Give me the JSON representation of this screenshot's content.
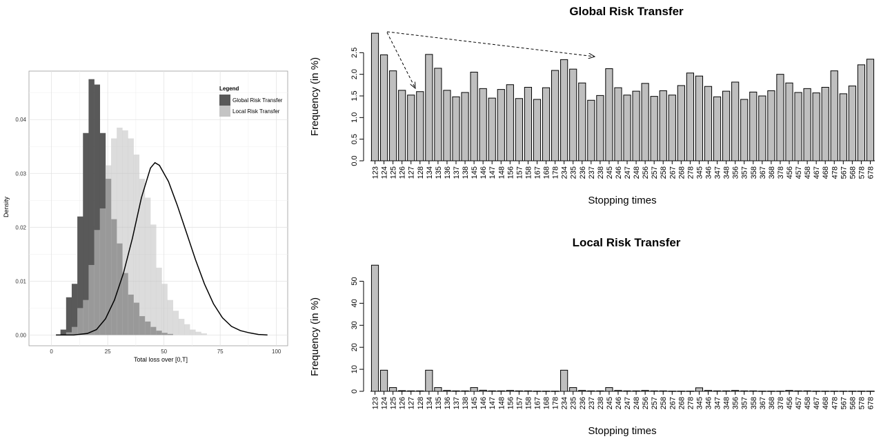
{
  "chart_data": [
    {
      "type": "area",
      "title": "",
      "xlabel": "Total loss over [0,T]",
      "ylabel": "Density",
      "xlim": [
        -10,
        105
      ],
      "ylim": [
        -0.002,
        0.049
      ],
      "x_ticks": [
        "0",
        "25",
        "50",
        "75",
        "100"
      ],
      "y_ticks": [
        "0.00",
        "0.01",
        "0.02",
        "0.03",
        "0.04"
      ],
      "grid": true,
      "legend_title": "Legend",
      "legend_position": "top-right",
      "bin_width": 2.5,
      "series": [
        {
          "name": "Global Risk Transfer",
          "color": "#595959",
          "bin_start": 4,
          "values": [
            0.001,
            0.007,
            0.0095,
            0.022,
            0.0375,
            0.0475,
            0.0465,
            0.0375,
            0.029,
            0.0215,
            0.017,
            0.0115,
            0.0075,
            0.006,
            0.0035,
            0.0025,
            0.0015,
            0.0008,
            0.0004,
            0.0002
          ]
        },
        {
          "name": "Local Risk Transfer",
          "color": "#c4c4c4",
          "bin_start": 6.5,
          "values": [
            0.0005,
            0.0015,
            0.005,
            0.0065,
            0.013,
            0.0195,
            0.0235,
            0.0315,
            0.0365,
            0.0385,
            0.038,
            0.0365,
            0.0335,
            0.029,
            0.0255,
            0.0205,
            0.0125,
            0.0095,
            0.0065,
            0.0045,
            0.003,
            0.002,
            0.001,
            0.0006,
            0.0003
          ]
        },
        {
          "name": "density",
          "type": "line",
          "color": "#000000",
          "x": [
            2,
            10,
            16,
            20,
            24,
            28,
            32,
            36,
            40,
            44,
            46,
            48,
            52,
            56,
            60,
            64,
            68,
            72,
            76,
            80,
            84,
            88,
            92,
            96
          ],
          "y": [
            0,
            0,
            0.0003,
            0.001,
            0.003,
            0.0065,
            0.0115,
            0.018,
            0.0255,
            0.031,
            0.032,
            0.0315,
            0.0285,
            0.024,
            0.019,
            0.014,
            0.0095,
            0.0058,
            0.0032,
            0.0016,
            0.0008,
            0.0004,
            0.0001,
            0
          ]
        }
      ]
    },
    {
      "type": "bar",
      "title": "Global Risk Transfer",
      "xlabel": "Stopping times",
      "ylabel": "Frequency (in %)",
      "ylim": [
        0,
        3.0
      ],
      "y_ticks": [
        "0.0",
        "0.5",
        "1.0",
        "1.5",
        "2.0",
        "2.5"
      ],
      "categories": [
        "123",
        "124",
        "125",
        "126",
        "127",
        "128",
        "134",
        "135",
        "136",
        "137",
        "138",
        "145",
        "146",
        "147",
        "148",
        "156",
        "157",
        "158",
        "167",
        "168",
        "178",
        "234",
        "235",
        "236",
        "237",
        "238",
        "245",
        "246",
        "247",
        "248",
        "256",
        "257",
        "258",
        "267",
        "268",
        "278",
        "345",
        "346",
        "347",
        "348",
        "356",
        "357",
        "358",
        "367",
        "368",
        "378",
        "456",
        "457",
        "458",
        "467",
        "468",
        "478",
        "567",
        "568",
        "578",
        "678"
      ],
      "values": [
        2.95,
        2.45,
        2.08,
        1.63,
        1.52,
        1.6,
        2.46,
        2.14,
        1.63,
        1.48,
        1.58,
        2.05,
        1.67,
        1.45,
        1.65,
        1.76,
        1.44,
        1.7,
        1.42,
        1.69,
        2.09,
        2.34,
        2.12,
        1.8,
        1.4,
        1.51,
        2.13,
        1.69,
        1.52,
        1.61,
        1.79,
        1.49,
        1.62,
        1.52,
        1.74,
        2.03,
        1.96,
        1.72,
        1.48,
        1.61,
        1.82,
        1.42,
        1.59,
        1.5,
        1.62,
        2.0,
        1.8,
        1.58,
        1.67,
        1.57,
        1.7,
        2.08,
        1.55,
        1.73,
        2.22,
        2.35
      ],
      "bar_color": "#bfbfbf"
    },
    {
      "type": "bar",
      "title": "Local Risk Transfer",
      "xlabel": "Stopping times",
      "ylabel": "Frequency (in %)",
      "ylim": [
        0,
        58
      ],
      "y_ticks": [
        "0",
        "10",
        "20",
        "30",
        "40",
        "50"
      ],
      "categories": [
        "123",
        "124",
        "125",
        "126",
        "127",
        "128",
        "134",
        "135",
        "136",
        "137",
        "138",
        "145",
        "146",
        "147",
        "148",
        "156",
        "157",
        "158",
        "167",
        "168",
        "178",
        "234",
        "235",
        "236",
        "237",
        "238",
        "245",
        "246",
        "247",
        "248",
        "256",
        "257",
        "258",
        "267",
        "268",
        "278",
        "345",
        "346",
        "347",
        "348",
        "356",
        "357",
        "358",
        "367",
        "368",
        "378",
        "456",
        "457",
        "458",
        "467",
        "468",
        "478",
        "567",
        "568",
        "578",
        "678"
      ],
      "values": [
        57.3,
        9.6,
        1.7,
        0.3,
        0.2,
        0.2,
        9.6,
        1.7,
        0.4,
        0.2,
        0.2,
        1.7,
        0.5,
        0.2,
        0.2,
        0.4,
        0.2,
        0.2,
        0.1,
        0.1,
        0.1,
        9.6,
        1.7,
        0.4,
        0.2,
        0.2,
        1.7,
        0.4,
        0.2,
        0.2,
        0.4,
        0.2,
        0.2,
        0.1,
        0.1,
        0.1,
        1.6,
        0.4,
        0.2,
        0.2,
        0.4,
        0.2,
        0.2,
        0.1,
        0.1,
        0.1,
        0.4,
        0.2,
        0.2,
        0.1,
        0.1,
        0.1,
        0.1,
        0.1,
        0.1,
        0.1
      ],
      "bar_color": "#bfbfbf"
    }
  ]
}
